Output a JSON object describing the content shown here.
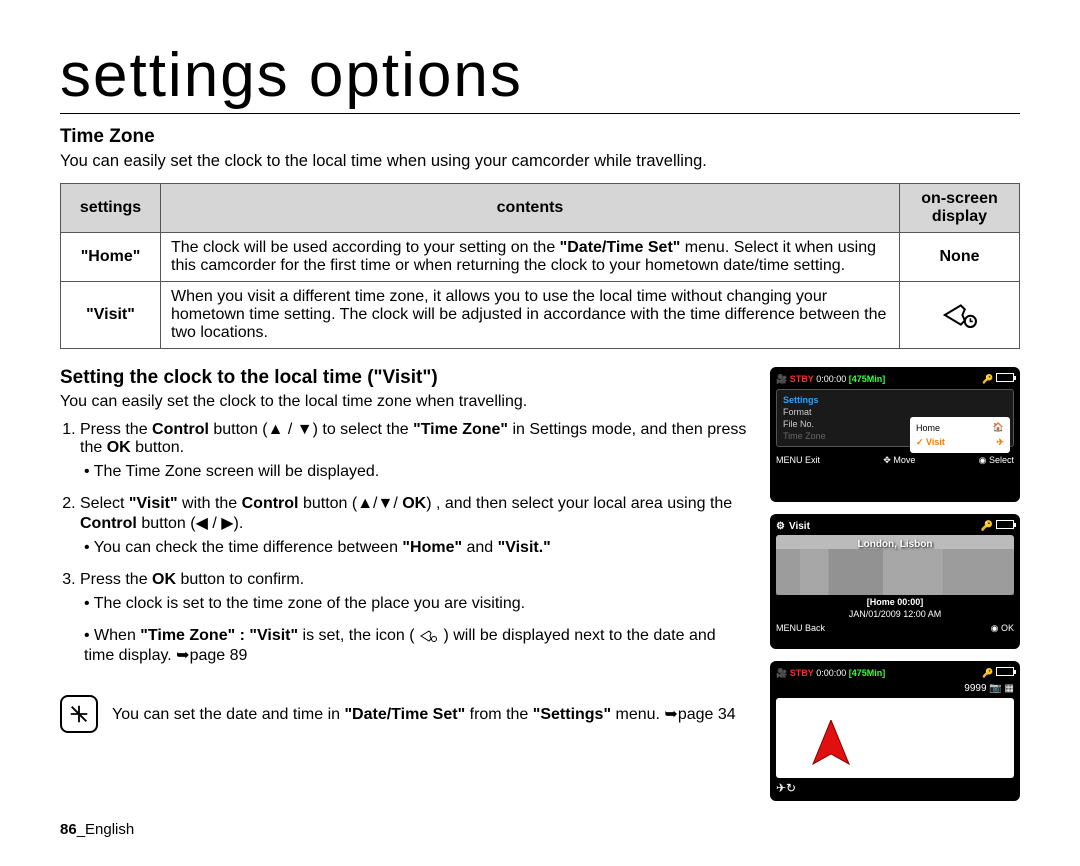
{
  "page": {
    "title": "settings options",
    "heading": "Time Zone",
    "intro": "You can easily set the clock to the local time when using your camcorder while travelling.",
    "footer_num": "86",
    "footer_lang": "_English"
  },
  "table": {
    "headers": {
      "c1": "settings",
      "c2": "contents",
      "c3_l1": "on-screen",
      "c3_l2": "display"
    },
    "rows": [
      {
        "setting": "\"Home\"",
        "content_html": "The clock will be used according to your setting on the <span class='b'>\"Date/Time Set\"</span> menu. Select it when using this camcorder for the first time or when returning the clock to your hometown date/time setting.",
        "display_text": "None",
        "display_icon": false
      },
      {
        "setting": "\"Visit\"",
        "content_html": "When you visit a different time zone, it allows you to use the local time without changing your hometown time setting. The clock will be adjusted in accordance with the time difference between the two locations.",
        "display_text": "",
        "display_icon": true
      }
    ]
  },
  "subsection": {
    "heading": "Setting the clock to the local time (\"Visit\")",
    "intro": "You can easily set the clock to the local time zone when travelling."
  },
  "steps": [
    {
      "main_html": "Press the <span class='b'>Control</span> button (▲ / ▼) to select the <span class='b'>\"Time Zone\"</span> in Settings mode, and then press the <span class='b'>OK</span> button.",
      "bullets": [
        "The Time Zone screen will be displayed."
      ]
    },
    {
      "main_html": "Select <span class='b'>\"Visit\"</span> with the <span class='b'>Control</span> button (▲/▼/ <span class='b'>OK</span>) , and then select your local area using the <span class='b'>Control</span> button (◀ / ▶).",
      "bullets": [
        "You can check the time difference between <span class='b'>\"Home\"</span> and <span class='b'>\"Visit.\"</span>"
      ]
    },
    {
      "main_html": "Press the <span class='b'>OK</span> button to confirm.",
      "bullets": [
        "The clock is set to the time zone of the place you are visiting.",
        "When <span class='b'>\"Time Zone\" : \"Visit\"</span> is set, the icon ( <svg width='20' height='14' viewBox='0 0 40 28' style='vertical-align:middle'><path d='M4 14 L20 4 L24 8 L22 14 L24 20 L20 24 Z' fill='none' stroke='#000' stroke-width='2'/><circle cx='30' cy='20' r='5' fill='none' stroke='#000' stroke-width='2'/></svg> ) will be displayed next to the date and time display. ➥page 89"
      ]
    }
  ],
  "note": {
    "text_html": "You can set the date and time in <span class='b'>\"Date/Time Set\"</span> from the <span class='b'>\"Settings\"</span> menu. ➥page 34"
  },
  "screens": {
    "s1": {
      "stby": "STBY",
      "time": "0:00:00",
      "remain": "[475Min]",
      "tab": "Settings",
      "menu_items": [
        {
          "label": "Format",
          "dim": false
        },
        {
          "label": "File No.",
          "dim": false
        },
        {
          "label": "Time Zone",
          "dim": true
        }
      ],
      "submenu": {
        "home": "Home",
        "visit": "Visit"
      },
      "footer": {
        "l": "MENU Exit",
        "m": "✥ Move",
        "r": "◉ Select"
      }
    },
    "s2": {
      "title": "Visit",
      "city": "London, Lisbon",
      "home_caption1": "[Home 00:00]",
      "home_caption2": "JAN/01/2009 12:00 AM",
      "footer": {
        "l": "MENU Back",
        "r": "◉ OK"
      }
    },
    "s3": {
      "stby": "STBY",
      "time": "0:00:00",
      "remain": "[475Min]",
      "count": "9999"
    }
  }
}
